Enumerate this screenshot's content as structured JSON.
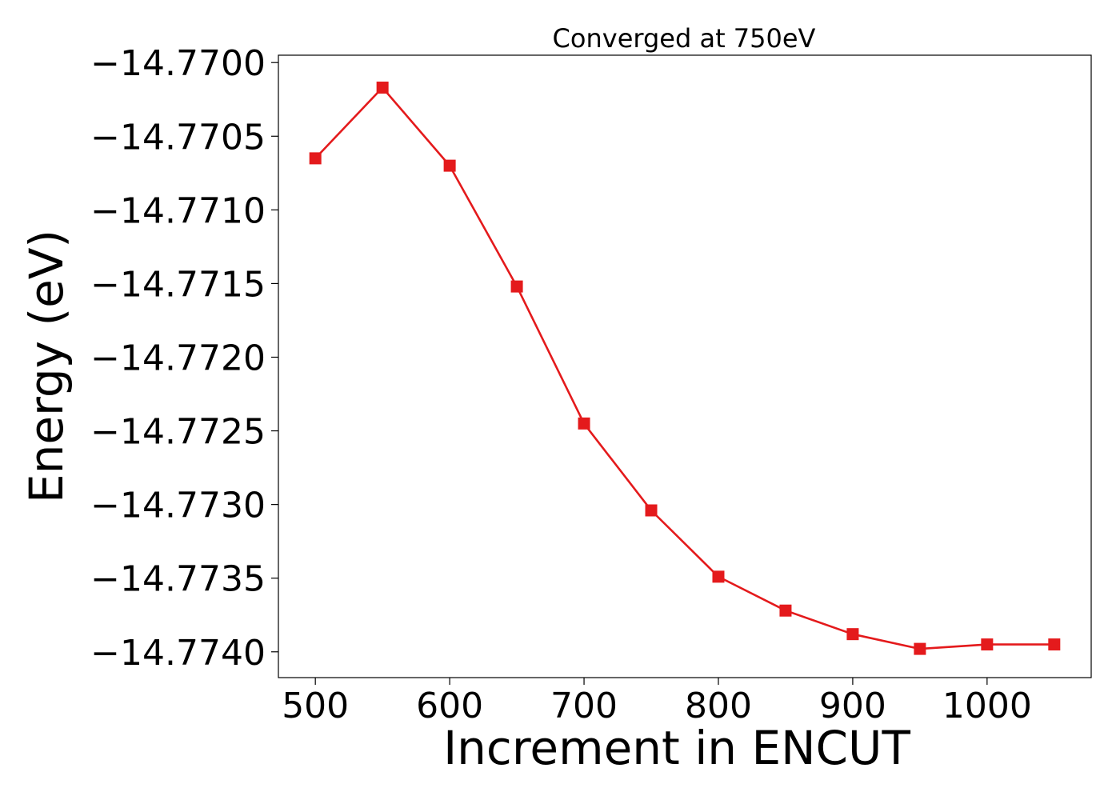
{
  "chart_data": {
    "type": "line",
    "title": "Converged at 750eV",
    "xlabel": "Increment in ENCUT",
    "ylabel": "Energy (eV)",
    "x": [
      500,
      550,
      600,
      650,
      700,
      750,
      800,
      850,
      900,
      950,
      1000,
      1050
    ],
    "series": [
      {
        "values": [
          -14.77065,
          -14.77017,
          -14.7707,
          -14.77152,
          -14.77245,
          -14.77304,
          -14.77349,
          -14.77372,
          -14.77388,
          -14.77398,
          -14.77395,
          -14.77395
        ],
        "color": "#e41a1c",
        "marker": "square"
      }
    ],
    "xlim": [
      472.5,
      1077.5
    ],
    "ylim": [
      -14.774175,
      -14.76995
    ],
    "xticks": [
      500,
      600,
      700,
      800,
      900,
      1000
    ],
    "xtick_labels": [
      "500",
      "600",
      "700",
      "800",
      "900",
      "1000"
    ],
    "yticks": [
      -14.77,
      -14.7705,
      -14.771,
      -14.7715,
      -14.772,
      -14.7725,
      -14.773,
      -14.7735,
      -14.774
    ],
    "ytick_labels": [
      "−14.7700",
      "−14.7705",
      "−14.7710",
      "−14.7715",
      "−14.7720",
      "−14.7725",
      "−14.7730",
      "−14.7735",
      "−14.7740"
    ],
    "grid": false,
    "legend": false
  }
}
